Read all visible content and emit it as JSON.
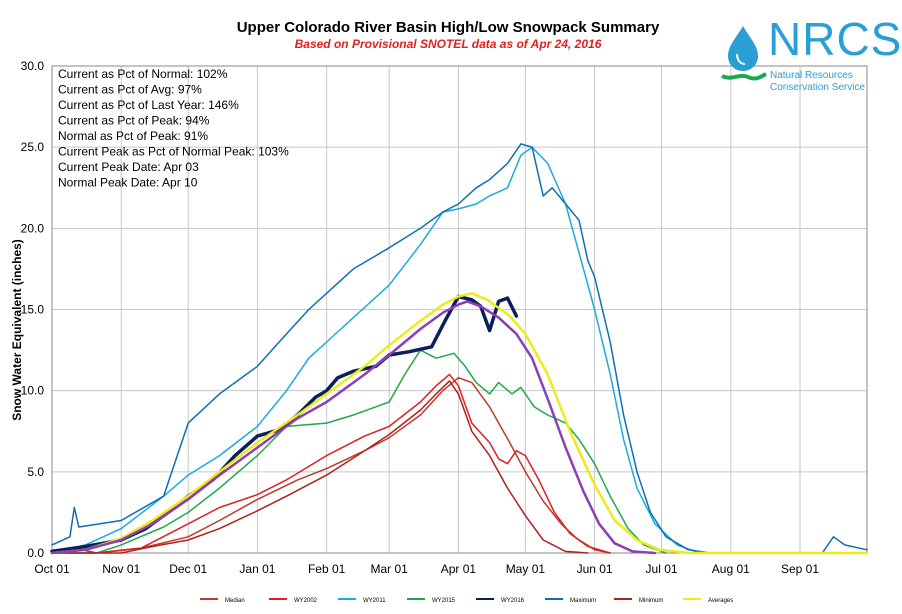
{
  "chart_data": {
    "type": "line",
    "title": "Upper Colorado River Basin High/Low Snowpack Summary",
    "subtitle": "Based on Provisional SNOTEL data as of Apr 24, 2016",
    "ylabel": "Snow Water Equivalent (inches)",
    "xlabel": "",
    "ylim": [
      0,
      30
    ],
    "xlim": [
      0,
      365
    ],
    "grid": true,
    "legend_position": "bottom",
    "yticks": [
      "0.0",
      "5.0",
      "10.0",
      "15.0",
      "20.0",
      "25.0",
      "30.0"
    ],
    "yticks_values": [
      0,
      5,
      10,
      15,
      20,
      25,
      30
    ],
    "xticks": [
      "Oct 01",
      "Nov 01",
      "Dec 01",
      "Jan 01",
      "Feb 01",
      "Mar 01",
      "Apr 01",
      "May 01",
      "Jun 01",
      "Jul 01",
      "Aug 01",
      "Sep 01"
    ],
    "xticks_days": [
      0,
      31,
      61,
      92,
      123,
      151,
      182,
      212,
      243,
      273,
      304,
      335
    ],
    "stats": [
      "Current  as Pct of Normal: 102%",
      "Current  as Pct of Avg: 97%",
      "Current  as Pct of Last Year: 146%",
      "Current  as Pct of Peak: 94%",
      "Normal  as Pct of Peak: 91%",
      "Current  Peak as Pct of Normal  Peak: 103%",
      "Current  Peak Date:  Apr 03",
      "Normal  Peak Date:  Apr 10"
    ],
    "series": [
      {
        "name": "Median",
        "color": "#c0392b",
        "width": 1.5,
        "points": [
          [
            0,
            0
          ],
          [
            20,
            0
          ],
          [
            40,
            0.3
          ],
          [
            61,
            1.0
          ],
          [
            75,
            2.0
          ],
          [
            92,
            3.3
          ],
          [
            110,
            4.5
          ],
          [
            123,
            5.2
          ],
          [
            140,
            6.3
          ],
          [
            151,
            7.1
          ],
          [
            165,
            8.5
          ],
          [
            175,
            10.0
          ],
          [
            182,
            10.8
          ],
          [
            188,
            10.5
          ],
          [
            196,
            9.0
          ],
          [
            205,
            6.8
          ],
          [
            212,
            5.0
          ],
          [
            220,
            3.2
          ],
          [
            228,
            1.8
          ],
          [
            235,
            0.9
          ],
          [
            243,
            0.2
          ],
          [
            250,
            0
          ]
        ]
      },
      {
        "name": "WY2002",
        "color": "#e02020",
        "width": 1.5,
        "points": [
          [
            0,
            0
          ],
          [
            10,
            0.3
          ],
          [
            20,
            0
          ],
          [
            40,
            0.3
          ],
          [
            61,
            1.8
          ],
          [
            75,
            2.8
          ],
          [
            92,
            3.6
          ],
          [
            105,
            4.5
          ],
          [
            123,
            6.0
          ],
          [
            140,
            7.2
          ],
          [
            151,
            7.8
          ],
          [
            165,
            9.3
          ],
          [
            172,
            10.3
          ],
          [
            178,
            11.0
          ],
          [
            182,
            10.3
          ],
          [
            188,
            8.0
          ],
          [
            196,
            6.8
          ],
          [
            200,
            5.8
          ],
          [
            204,
            5.5
          ],
          [
            208,
            6.3
          ],
          [
            212,
            6.0
          ],
          [
            218,
            4.5
          ],
          [
            225,
            2.5
          ],
          [
            232,
            1.2
          ],
          [
            240,
            0.4
          ],
          [
            250,
            0
          ]
        ]
      },
      {
        "name": "WY2011",
        "color": "#1aabe0",
        "width": 1.5,
        "points": [
          [
            0,
            0
          ],
          [
            15,
            0.5
          ],
          [
            31,
            1.5
          ],
          [
            50,
            3.5
          ],
          [
            61,
            4.8
          ],
          [
            75,
            6.0
          ],
          [
            92,
            7.8
          ],
          [
            105,
            10.0
          ],
          [
            115,
            12.0
          ],
          [
            123,
            13.0
          ],
          [
            135,
            14.5
          ],
          [
            151,
            16.5
          ],
          [
            165,
            19.0
          ],
          [
            175,
            21.0
          ],
          [
            182,
            21.2
          ],
          [
            190,
            21.5
          ],
          [
            196,
            22.0
          ],
          [
            204,
            22.5
          ],
          [
            210,
            24.5
          ],
          [
            215,
            25.0
          ],
          [
            222,
            24.0
          ],
          [
            230,
            21.5
          ],
          [
            236,
            18.5
          ],
          [
            243,
            15.0
          ],
          [
            250,
            11.0
          ],
          [
            256,
            7.0
          ],
          [
            262,
            4.0
          ],
          [
            270,
            1.8
          ],
          [
            280,
            0.5
          ],
          [
            290,
            0
          ]
        ]
      },
      {
        "name": "WY2015",
        "color": "#21a84a",
        "width": 1.5,
        "points": [
          [
            0,
            0
          ],
          [
            20,
            0
          ],
          [
            31,
            0.5
          ],
          [
            50,
            1.6
          ],
          [
            61,
            2.5
          ],
          [
            75,
            4.0
          ],
          [
            92,
            6.0
          ],
          [
            105,
            7.8
          ],
          [
            123,
            8.0
          ],
          [
            135,
            8.5
          ],
          [
            151,
            9.3
          ],
          [
            158,
            11.0
          ],
          [
            165,
            12.5
          ],
          [
            172,
            12.0
          ],
          [
            180,
            12.3
          ],
          [
            185,
            11.5
          ],
          [
            190,
            10.5
          ],
          [
            196,
            9.8
          ],
          [
            200,
            10.5
          ],
          [
            206,
            9.8
          ],
          [
            210,
            10.2
          ],
          [
            216,
            9.0
          ],
          [
            222,
            8.5
          ],
          [
            230,
            8.0
          ],
          [
            236,
            7.0
          ],
          [
            243,
            5.5
          ],
          [
            250,
            3.5
          ],
          [
            258,
            1.5
          ],
          [
            265,
            0.5
          ],
          [
            275,
            0
          ]
        ]
      },
      {
        "name": "WY2016",
        "color": "#0b1f5c",
        "width": 3.5,
        "points": [
          [
            0,
            0.1
          ],
          [
            15,
            0.4
          ],
          [
            31,
            0.8
          ],
          [
            42,
            1.5
          ],
          [
            52,
            2.5
          ],
          [
            61,
            3.5
          ],
          [
            72,
            4.5
          ],
          [
            82,
            6.0
          ],
          [
            92,
            7.2
          ],
          [
            102,
            7.6
          ],
          [
            110,
            8.5
          ],
          [
            118,
            9.6
          ],
          [
            123,
            10.0
          ],
          [
            128,
            10.8
          ],
          [
            135,
            11.2
          ],
          [
            145,
            11.5
          ],
          [
            151,
            12.2
          ],
          [
            160,
            12.4
          ],
          [
            170,
            12.7
          ],
          [
            176,
            14.3
          ],
          [
            182,
            15.8
          ],
          [
            188,
            15.6
          ],
          [
            192,
            15.2
          ],
          [
            196,
            13.7
          ],
          [
            200,
            15.5
          ],
          [
            204,
            15.7
          ],
          [
            208,
            14.6
          ]
        ]
      },
      {
        "name": "Maximum",
        "color": "#0e6eb5",
        "width": 1.5,
        "points": [
          [
            0,
            0.5
          ],
          [
            8,
            1.0
          ],
          [
            10,
            2.8
          ],
          [
            12,
            1.6
          ],
          [
            31,
            2.0
          ],
          [
            50,
            3.5
          ],
          [
            61,
            8.0
          ],
          [
            75,
            9.8
          ],
          [
            92,
            11.5
          ],
          [
            105,
            13.5
          ],
          [
            115,
            15.0
          ],
          [
            123,
            16.0
          ],
          [
            135,
            17.5
          ],
          [
            151,
            18.8
          ],
          [
            165,
            20.0
          ],
          [
            175,
            21.0
          ],
          [
            182,
            21.5
          ],
          [
            190,
            22.5
          ],
          [
            196,
            23.0
          ],
          [
            204,
            24.0
          ],
          [
            210,
            25.2
          ],
          [
            215,
            25.0
          ],
          [
            220,
            22.0
          ],
          [
            224,
            22.5
          ],
          [
            230,
            21.5
          ],
          [
            236,
            20.5
          ],
          [
            240,
            18.0
          ],
          [
            243,
            17.0
          ],
          [
            250,
            13.0
          ],
          [
            256,
            8.5
          ],
          [
            262,
            5.0
          ],
          [
            268,
            2.5
          ],
          [
            275,
            1.0
          ],
          [
            285,
            0.2
          ],
          [
            295,
            0
          ],
          [
            345,
            0
          ],
          [
            350,
            1.0
          ],
          [
            355,
            0.5
          ],
          [
            365,
            0.2
          ]
        ]
      },
      {
        "name": "Minimum",
        "color": "#b41e1e",
        "width": 1.5,
        "points": [
          [
            0,
            0
          ],
          [
            15,
            0
          ],
          [
            31,
            0
          ],
          [
            45,
            0.4
          ],
          [
            61,
            0.8
          ],
          [
            75,
            1.5
          ],
          [
            92,
            2.6
          ],
          [
            105,
            3.5
          ],
          [
            123,
            4.8
          ],
          [
            140,
            6.3
          ],
          [
            151,
            7.3
          ],
          [
            165,
            8.8
          ],
          [
            172,
            9.8
          ],
          [
            178,
            10.6
          ],
          [
            182,
            9.8
          ],
          [
            188,
            7.5
          ],
          [
            196,
            6.0
          ],
          [
            204,
            4.0
          ],
          [
            212,
            2.3
          ],
          [
            220,
            0.8
          ],
          [
            230,
            0.1
          ],
          [
            240,
            0
          ]
        ]
      },
      {
        "name": "Averages",
        "color": "#f0ea1a",
        "width": 2.5,
        "points": [
          [
            0,
            0
          ],
          [
            15,
            0.2
          ],
          [
            31,
            0.9
          ],
          [
            45,
            2.0
          ],
          [
            61,
            3.5
          ],
          [
            75,
            5.0
          ],
          [
            92,
            6.8
          ],
          [
            110,
            8.5
          ],
          [
            123,
            9.8
          ],
          [
            140,
            11.5
          ],
          [
            151,
            12.8
          ],
          [
            165,
            14.3
          ],
          [
            175,
            15.3
          ],
          [
            182,
            15.8
          ],
          [
            188,
            16.0
          ],
          [
            195,
            15.6
          ],
          [
            205,
            14.6
          ],
          [
            212,
            13.5
          ],
          [
            222,
            11.0
          ],
          [
            232,
            7.5
          ],
          [
            243,
            4.2
          ],
          [
            252,
            2.0
          ],
          [
            262,
            0.8
          ],
          [
            272,
            0.2
          ],
          [
            285,
            0
          ],
          [
            365,
            0
          ]
        ]
      },
      {
        "name": "Median",
        "color": "#8a3fb5",
        "width": 2.5,
        "points": [
          [
            0,
            0
          ],
          [
            15,
            0.2
          ],
          [
            31,
            0.8
          ],
          [
            45,
            1.8
          ],
          [
            61,
            3.3
          ],
          [
            75,
            4.8
          ],
          [
            92,
            6.5
          ],
          [
            110,
            8.3
          ],
          [
            123,
            9.3
          ],
          [
            140,
            11.0
          ],
          [
            151,
            12.2
          ],
          [
            165,
            13.8
          ],
          [
            175,
            14.8
          ],
          [
            182,
            15.3
          ],
          [
            186,
            15.5
          ],
          [
            192,
            15.2
          ],
          [
            200,
            14.5
          ],
          [
            208,
            13.5
          ],
          [
            215,
            12.0
          ],
          [
            222,
            9.5
          ],
          [
            230,
            6.5
          ],
          [
            238,
            3.8
          ],
          [
            245,
            1.8
          ],
          [
            252,
            0.6
          ],
          [
            260,
            0.1
          ],
          [
            270,
            0
          ]
        ]
      }
    ],
    "legend": [
      {
        "label": "Median",
        "color": "#c0392b"
      },
      {
        "label": "WY2002",
        "color": "#e02020"
      },
      {
        "label": "WY2011",
        "color": "#1aabe0"
      },
      {
        "label": "WY2015",
        "color": "#21a84a"
      },
      {
        "label": "WY2016",
        "color": "#0b1f5c"
      },
      {
        "label": "Maximum",
        "color": "#0e6eb5"
      },
      {
        "label": "Minimum",
        "color": "#b41e1e"
      },
      {
        "label": "Averages",
        "color": "#f0ea1a"
      }
    ]
  },
  "logo": {
    "name": "NRCS",
    "line1": "Natural Resources",
    "line2": "Conservation Service",
    "icon": "water-drop-icon",
    "color": "#2a9fd6"
  }
}
